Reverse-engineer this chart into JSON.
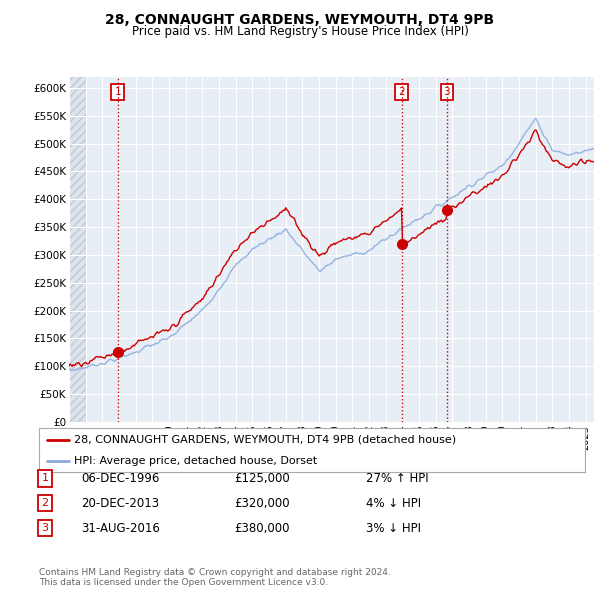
{
  "title": "28, CONNAUGHT GARDENS, WEYMOUTH, DT4 9PB",
  "subtitle": "Price paid vs. HM Land Registry's House Price Index (HPI)",
  "ylim": [
    0,
    620000
  ],
  "yticks": [
    0,
    50000,
    100000,
    150000,
    200000,
    250000,
    300000,
    350000,
    400000,
    450000,
    500000,
    550000,
    600000
  ],
  "ytick_labels": [
    "£0",
    "£50K",
    "£100K",
    "£150K",
    "£200K",
    "£250K",
    "£300K",
    "£350K",
    "£400K",
    "£450K",
    "£500K",
    "£550K",
    "£600K"
  ],
  "background_color": "#ffffff",
  "plot_bg_color": "#e8eef5",
  "grid_color": "#ffffff",
  "sale_color": "#cc0000",
  "hpi_color": "#88aadd",
  "legend_sale": "28, CONNAUGHT GARDENS, WEYMOUTH, DT4 9PB (detached house)",
  "legend_hpi": "HPI: Average price, detached house, Dorset",
  "t1": 1996.92,
  "t2": 2013.96,
  "t3": 2016.67,
  "p1": 125000,
  "p2": 320000,
  "p3": 380000,
  "transactions": [
    {
      "date": "1996-12-06",
      "price": 125000,
      "label": "1",
      "t": 1996.92
    },
    {
      "date": "2013-12-20",
      "price": 320000,
      "label": "2",
      "t": 2013.96
    },
    {
      "date": "2016-08-31",
      "price": 380000,
      "label": "3",
      "t": 2016.67
    }
  ],
  "table_rows": [
    {
      "num": "1",
      "date": "06-DEC-1996",
      "price": "£125,000",
      "change": "27% ↑ HPI"
    },
    {
      "num": "2",
      "date": "20-DEC-2013",
      "price": "£320,000",
      "change": "4% ↓ HPI"
    },
    {
      "num": "3",
      "date": "31-AUG-2016",
      "price": "£380,000",
      "change": "3% ↓ HPI"
    }
  ],
  "footer": "Contains HM Land Registry data © Crown copyright and database right 2024.\nThis data is licensed under the Open Government Licence v3.0.",
  "vline_color": "#cc0000",
  "xstart": 1994.0,
  "xend": 2025.5
}
